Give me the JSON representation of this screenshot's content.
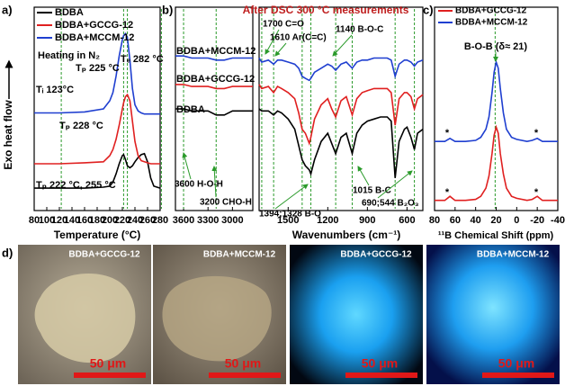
{
  "panel_labels": [
    "a)",
    "b)",
    "c)",
    "d)"
  ],
  "chart_data": [
    {
      "type": "line",
      "x_label": "Temperature (°C)",
      "y_label": "Exo heat flow",
      "legend": "upper left",
      "xlim": [
        80,
        280
      ],
      "xticks": [
        80,
        100,
        120,
        140,
        160,
        180,
        200,
        220,
        240,
        260,
        280
      ],
      "ylim": [
        0,
        100
      ],
      "yticks": [],
      "x": [
        80,
        120,
        160,
        190,
        200,
        205,
        210,
        215,
        220,
        222,
        225,
        228,
        232,
        236,
        240,
        245,
        250,
        255,
        260,
        265,
        270,
        280
      ],
      "series": [
        {
          "name": "BDBA",
          "color": "#000000",
          "values": [
            11,
            11,
            11,
            11.5,
            12,
            14,
            18,
            23,
            27,
            27.5,
            25,
            22,
            21,
            22,
            24,
            26,
            27.5,
            28,
            24,
            16,
            12,
            11
          ]
        },
        {
          "name": "BDBA+GCCG-12",
          "color": "#e02020",
          "values": [
            23,
            23,
            23.5,
            24,
            27,
            30,
            35,
            42,
            50,
            53,
            56,
            57,
            54,
            44,
            34,
            27,
            24.5,
            24,
            23.5,
            23,
            23,
            23
          ]
        },
        {
          "name": "BDBA+MCCM-12",
          "color": "#1f3fd0",
          "values": [
            48,
            48,
            48.5,
            50,
            54,
            58,
            66,
            76,
            84,
            86,
            87,
            85,
            74,
            60,
            52,
            49,
            48,
            47.5,
            47.5,
            47.5,
            47.5,
            47.5
          ]
        }
      ],
      "vlines": [
        123,
        222,
        228,
        282
      ],
      "vline_color": "#2a9a2a",
      "annotations": [
        "Heating in N₂",
        "Tₚ 225 °C",
        "Tₑ 282 °C",
        "Tᵢ 123°C",
        "Tₚ 228 °C",
        "Tₚ 222 °C, 255 °C"
      ]
    },
    {
      "type": "line",
      "title": "After DSC 300 °C measurements",
      "x_label": "Wavenumbers (cm⁻¹)",
      "ylim": [
        0,
        100
      ],
      "yticks": [],
      "series": [
        {
          "name": "BDBA+MCCM-12",
          "color": "#1f3fd0"
        },
        {
          "name": "BDBA+GCCG-12",
          "color": "#e02020"
        },
        {
          "name": "BDBA",
          "color": "#000000"
        }
      ],
      "vline_color": "#2a9a2a",
      "segments": [
        {
          "xlim": [
            3700,
            2750
          ],
          "xticks": [
            3600,
            3300,
            3000
          ],
          "x": [
            3700,
            3600,
            3500,
            3400,
            3300,
            3200,
            3100,
            3000,
            2900,
            2800,
            2750
          ],
          "values": [
            [
              76,
              76,
              75,
              75,
              75,
              74,
              74,
              75,
              75,
              75,
              75
            ],
            [
              62,
              62,
              61,
              61,
              61,
              60,
              60,
              61,
              61,
              61,
              61
            ],
            [
              50,
              50,
              49,
              49,
              49,
              47,
              47,
              49,
              49,
              49,
              49
            ]
          ],
          "vlines": [
            3600,
            3200
          ]
        },
        {
          "xlim": [
            1720,
            480
          ],
          "xticks": [
            1500,
            1200,
            900,
            600
          ],
          "x": [
            1720,
            1700,
            1650,
            1610,
            1580,
            1550,
            1500,
            1450,
            1420,
            1394,
            1370,
            1340,
            1328,
            1300,
            1250,
            1200,
            1170,
            1140,
            1100,
            1060,
            1015,
            980,
            940,
            900,
            850,
            800,
            750,
            720,
            690,
            660,
            620,
            600,
            570,
            544,
            520,
            480
          ],
          "values": [
            [
              75,
              73,
              74,
              72,
              74,
              74,
              73,
              72,
              70,
              66,
              65,
              64,
              65,
              68,
              70,
              72,
              71,
              69,
              72,
              73,
              70,
              73,
              74,
              74,
              75,
              75,
              75,
              74,
              66,
              72,
              74,
              74,
              73,
              71,
              73,
              74
            ],
            [
              62,
              60,
              61,
              58,
              61,
              60,
              58,
              55,
              48,
              40,
              38,
              33,
              36,
              45,
              52,
              55,
              50,
              46,
              54,
              56,
              47,
              55,
              58,
              59,
              60,
              60,
              60,
              58,
              42,
              55,
              58,
              58,
              56,
              50,
              55,
              57
            ],
            [
              50,
              49,
              49,
              47,
              49,
              48,
              45,
              40,
              32,
              25,
              22,
              20,
              18,
              25,
              34,
              38,
              33,
              28,
              36,
              38,
              28,
              38,
              42,
              44,
              45,
              46,
              46,
              44,
              16,
              34,
              40,
              41,
              36,
              30,
              38,
              40
            ]
          ],
          "vlines": [
            1700,
            1610,
            1394,
            1328,
            1140,
            1015,
            690,
            544
          ]
        }
      ],
      "annotations": [
        "1700 C=O",
        "1610 Ar(C=C)",
        "1140 B-O-C",
        "3600 H-O-H",
        "3200 CHO-H",
        "1394;1328 B-O",
        "1015 B-C",
        "690;544 B₂O₃"
      ]
    },
    {
      "type": "line",
      "x_label": "¹¹B Chemical Shift (ppm)",
      "legend": "upper center",
      "xlim": [
        80,
        -40
      ],
      "xticks": [
        80,
        60,
        40,
        20,
        0,
        -20,
        -40
      ],
      "ylim": [
        0,
        100
      ],
      "yticks": [],
      "x": [
        80,
        70,
        65,
        60,
        50,
        40,
        35,
        30,
        27,
        24,
        22,
        20,
        18,
        16,
        13,
        10,
        5,
        0,
        -10,
        -15,
        -20,
        -25,
        -30,
        -40
      ],
      "series": [
        {
          "name": "BDBA+GCCG-12",
          "color": "#e02020",
          "values": [
            5,
            5,
            7,
            5,
            5,
            5.5,
            7,
            11,
            17,
            28,
            37,
            41,
            38,
            28,
            18,
            11,
            7,
            6,
            5,
            5.5,
            7,
            5,
            5,
            5
          ]
        },
        {
          "name": "BDBA+MCCM-12",
          "color": "#1f3fd0",
          "values": [
            34,
            34,
            35.5,
            34,
            34,
            34.5,
            36,
            40,
            46,
            58,
            68,
            73,
            70,
            60,
            48,
            40,
            36,
            35,
            34,
            34.5,
            35.5,
            34,
            34,
            34
          ]
        }
      ],
      "vlines": [
        21
      ],
      "vline_color": "#2a9a2a",
      "annotations": [
        "B-O-B (δ≈ 21)",
        "*",
        "*",
        "*",
        "*"
      ]
    }
  ],
  "photos": [
    {
      "label": "BDBA+GCCG-12",
      "scale_bar": "50 μm"
    },
    {
      "label": "BDBA+MCCM-12",
      "scale_bar": "50 μm"
    },
    {
      "label": "BDBA+GCCG-12",
      "scale_bar": "50 μm"
    },
    {
      "label": "BDBA+MCCM-12",
      "scale_bar": "50 μm"
    }
  ]
}
